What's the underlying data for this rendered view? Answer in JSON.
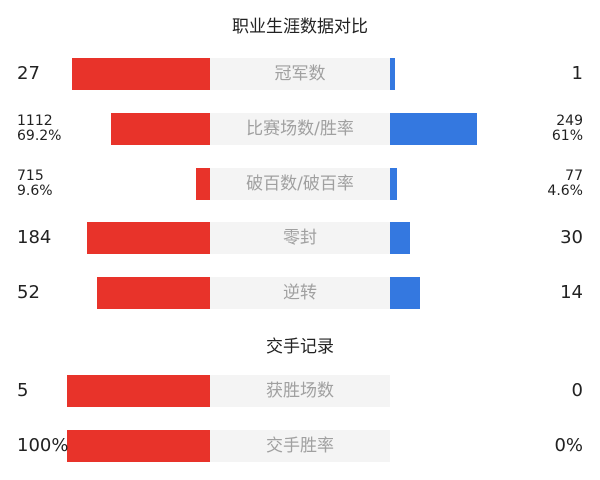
{
  "colors": {
    "left": "#e8332a",
    "right": "#3478e0",
    "label_box": "#f4f4f4"
  },
  "chart_data": {
    "type": "bar",
    "layout": "two-sided comparison",
    "sections": [
      {
        "title": "职业生涯数据对比",
        "rows": [
          {
            "label": "冠军数",
            "left": [
              "27"
            ],
            "right": [
              "1"
            ],
            "left_fill": 96.4,
            "right_fill": 3.6
          },
          {
            "label": "比赛场数/胜率",
            "left": [
              "1112",
              "69.2%"
            ],
            "right": [
              "249",
              "61%"
            ],
            "left_fill": 69.2,
            "right_fill": 61
          },
          {
            "label": "破百数/破百率",
            "left": [
              "715",
              "9.6%"
            ],
            "right": [
              "77",
              "4.6%"
            ],
            "left_fill": 9.6,
            "right_fill": 4.6
          },
          {
            "label": "零封",
            "left": [
              "184"
            ],
            "right": [
              "30"
            ],
            "left_fill": 86,
            "right_fill": 14
          },
          {
            "label": "逆转",
            "left": [
              "52"
            ],
            "right": [
              "14"
            ],
            "left_fill": 78.8,
            "right_fill": 21.2
          }
        ]
      },
      {
        "title": "交手记录",
        "rows": [
          {
            "label": "获胜场数",
            "left": [
              "5"
            ],
            "right": [
              "0"
            ],
            "left_fill": 100,
            "right_fill": 0
          },
          {
            "label": "交手胜率",
            "left": [
              "100%"
            ],
            "right": [
              "0%"
            ],
            "left_fill": 100,
            "right_fill": 0
          }
        ]
      }
    ]
  }
}
